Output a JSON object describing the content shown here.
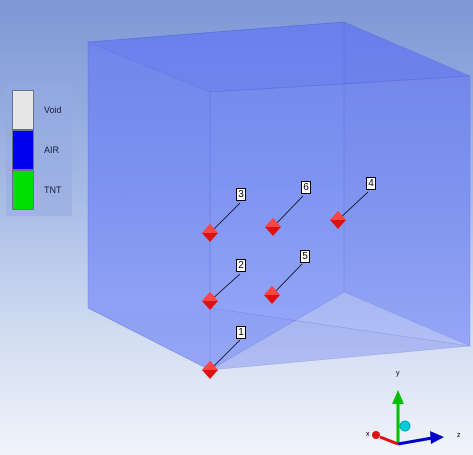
{
  "legend": {
    "items": [
      {
        "label": "Void",
        "color": "#e6e6e6"
      },
      {
        "label": "AIR",
        "color": "#0000ee"
      },
      {
        "label": "TNT",
        "color": "#00e000"
      }
    ]
  },
  "markers": [
    "1",
    "2",
    "3",
    "4",
    "5",
    "6"
  ],
  "marker_color": "#dd1111",
  "axes": {
    "x": "x",
    "y": "y",
    "z": "z"
  },
  "colors": {
    "domain_box": "#5a70ff",
    "axis_x": "#dd1111",
    "axis_y": "#00c000",
    "axis_z": "#0000cc",
    "axis_origin": "#00ccdd"
  }
}
